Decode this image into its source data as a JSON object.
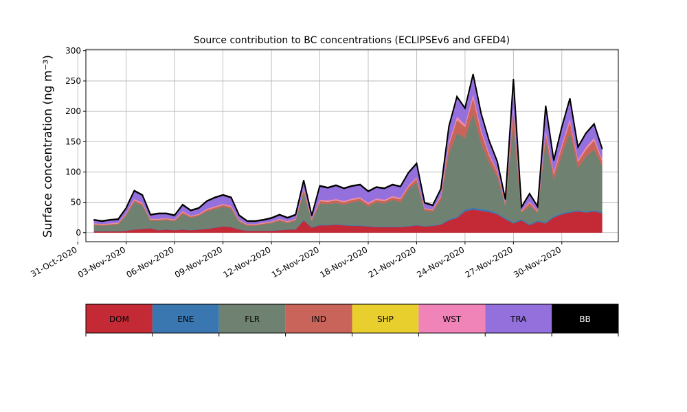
{
  "chart_data": {
    "type": "area",
    "stacked": true,
    "title": "Source contribution to BC concentrations (ECLIPSEv6 and GFED4)",
    "ylabel": "Surface concentration (ng m⁻³)",
    "xlabel": "",
    "ylim": [
      -15,
      302
    ],
    "yticks": [
      0,
      50,
      100,
      150,
      200,
      250,
      300
    ],
    "xlim": [
      "2020-10-31T12:00",
      "2020-12-03T12:00"
    ],
    "xticks": [
      "31-Oct-2020",
      "03-Nov-2020",
      "06-Nov-2020",
      "09-Nov-2020",
      "12-Nov-2020",
      "15-Nov-2020",
      "18-Nov-2020",
      "21-Nov-2020",
      "24-Nov-2020",
      "27-Nov-2020",
      "30-Nov-2020"
    ],
    "grid": true,
    "legend_position": "bottom",
    "colors": {
      "DOM": "#c42a36",
      "ENE": "#3a77b0",
      "FLR": "#6f8170",
      "IND": "#c8645a",
      "SHP": "#e8cf2e",
      "WST": "#f083b8",
      "TRA": "#9370db",
      "BB": "#000000"
    },
    "series_order": [
      "DOM",
      "ENE",
      "FLR",
      "IND",
      "SHP",
      "WST",
      "TRA",
      "BB"
    ],
    "x": [
      "2020-11-01T00:00",
      "2020-11-01T12:00",
      "2020-11-02T00:00",
      "2020-11-02T12:00",
      "2020-11-03T00:00",
      "2020-11-03T06:00",
      "2020-11-03T12:00",
      "2020-11-04T00:00",
      "2020-11-04T12:00",
      "2020-11-05T00:00",
      "2020-11-05T12:00",
      "2020-11-06T00:00",
      "2020-11-06T12:00",
      "2020-11-07T00:00",
      "2020-11-07T12:00",
      "2020-11-08T00:00",
      "2020-11-08T12:00",
      "2020-11-09T00:00",
      "2020-11-09T12:00",
      "2020-11-10T00:00",
      "2020-11-10T12:00",
      "2020-11-11T00:00",
      "2020-11-11T12:00",
      "2020-11-12T00:00",
      "2020-11-12T12:00",
      "2020-11-13T00:00",
      "2020-11-13T12:00",
      "2020-11-14T00:00",
      "2020-11-14T12:00",
      "2020-11-15T00:00",
      "2020-11-15T12:00",
      "2020-11-16T00:00",
      "2020-11-16T12:00",
      "2020-11-17T00:00",
      "2020-11-17T12:00",
      "2020-11-18T00:00",
      "2020-11-18T12:00",
      "2020-11-19T00:00",
      "2020-11-19T12:00",
      "2020-11-20T00:00",
      "2020-11-20T12:00",
      "2020-11-21T00:00",
      "2020-11-21T12:00",
      "2020-11-22T00:00",
      "2020-11-22T12:00",
      "2020-11-23T00:00",
      "2020-11-23T12:00",
      "2020-11-24T00:00",
      "2020-11-24T12:00",
      "2020-11-25T00:00",
      "2020-11-25T12:00",
      "2020-11-26T00:00",
      "2020-11-26T12:00",
      "2020-11-27T00:00",
      "2020-11-27T12:00",
      "2020-11-28T00:00",
      "2020-11-28T12:00",
      "2020-11-29T00:00",
      "2020-11-29T12:00",
      "2020-11-30T00:00",
      "2020-11-30T12:00",
      "2020-12-01T00:00",
      "2020-12-01T12:00",
      "2020-12-02T00:00",
      "2020-12-02T12:00"
    ],
    "series": [
      {
        "name": "DOM",
        "values": [
          2,
          2,
          2,
          2,
          3,
          4,
          5,
          6,
          7,
          4,
          5,
          4,
          5,
          4,
          5,
          6,
          8,
          10,
          9,
          5,
          3,
          3,
          3,
          3,
          4,
          5,
          5,
          20,
          8,
          12,
          12,
          13,
          12,
          11,
          11,
          10,
          9,
          9,
          9,
          9,
          10,
          12,
          10,
          11,
          13,
          20,
          24,
          35,
          38,
          36,
          34,
          30,
          22,
          15,
          20,
          12,
          18,
          15,
          25,
          30,
          33,
          35,
          33,
          35,
          32
        ]
      },
      {
        "name": "ENE",
        "values": [
          0.5,
          0.5,
          0.5,
          0.5,
          0.5,
          0.5,
          0.5,
          0.5,
          0.5,
          0.5,
          0.5,
          0.5,
          0.5,
          0.5,
          0.5,
          0.5,
          0.5,
          0.5,
          0.5,
          0.5,
          0.5,
          0.5,
          0.5,
          0.5,
          0.5,
          0.5,
          0.5,
          1,
          1,
          1,
          1,
          1,
          1,
          1,
          1,
          1,
          1,
          1,
          1,
          1,
          1,
          1,
          1,
          1,
          1,
          2,
          2,
          3,
          3,
          3,
          3,
          2,
          2,
          2,
          2,
          2,
          2,
          2,
          2,
          2,
          2,
          2,
          2,
          2,
          2
        ]
      },
      {
        "name": "FLR",
        "values": [
          10,
          9,
          10,
          11,
          25,
          35,
          45,
          38,
          12,
          15,
          15,
          14,
          25,
          20,
          22,
          28,
          30,
          32,
          30,
          12,
          8,
          8,
          10,
          12,
          15,
          10,
          14,
          45,
          10,
          35,
          34,
          35,
          33,
          38,
          40,
          32,
          40,
          38,
          44,
          40,
          60,
          70,
          25,
          22,
          40,
          108,
          138,
          118,
          155,
          108,
          78,
          60,
          20,
          160,
          10,
          30,
          12,
          135,
          60,
          95,
          130,
          70,
          90,
          100,
          75
        ]
      },
      {
        "name": "IND",
        "values": [
          1.5,
          1.5,
          1.5,
          1.5,
          2,
          3,
          3,
          3,
          2,
          2,
          2,
          2,
          3,
          2,
          2,
          3,
          3,
          3,
          3,
          2,
          1.5,
          1.5,
          1.5,
          1.5,
          2,
          2,
          2,
          5,
          2,
          4,
          4,
          4,
          4,
          4,
          4,
          4,
          4,
          4,
          4,
          5,
          5,
          6,
          3,
          3,
          5,
          15,
          22,
          18,
          26,
          18,
          12,
          8,
          3,
          25,
          3,
          5,
          3,
          12,
          10,
          14,
          18,
          10,
          12,
          15,
          9
        ]
      },
      {
        "name": "SHP",
        "values": [
          0.3,
          0.3,
          0.3,
          0.3,
          0.3,
          0.3,
          0.3,
          0.3,
          0.3,
          0.3,
          0.3,
          0.3,
          0.3,
          0.3,
          0.3,
          0.3,
          0.3,
          0.3,
          0.3,
          0.3,
          0.3,
          0.3,
          0.3,
          0.3,
          0.3,
          0.3,
          0.3,
          0.3,
          0.3,
          0.3,
          0.3,
          0.3,
          0.3,
          0.3,
          0.3,
          0.3,
          0.3,
          0.3,
          0.3,
          0.3,
          0.3,
          0.3,
          0.3,
          0.3,
          0.3,
          0.3,
          0.3,
          0.3,
          0.3,
          0.3,
          0.3,
          0.3,
          0.3,
          0.3,
          0.3,
          0.3,
          0.3,
          0.3,
          0.3,
          0.3,
          0.3,
          0.3,
          0.3,
          0.3,
          0.3
        ]
      },
      {
        "name": "WST",
        "values": [
          1,
          1,
          1,
          1,
          1,
          1.5,
          1.5,
          1.5,
          1,
          1,
          1,
          1,
          1.5,
          1,
          1,
          1.5,
          1.5,
          1.5,
          1.5,
          1,
          1,
          1,
          1,
          1,
          1,
          1,
          1,
          2,
          1,
          2,
          2,
          2,
          2,
          2,
          2,
          2,
          2,
          2,
          2,
          2,
          2,
          2,
          1,
          1,
          2,
          4,
          5,
          4,
          6,
          4,
          3,
          2,
          1,
          5,
          1,
          2,
          1,
          4,
          3,
          4,
          5,
          3,
          4,
          4,
          3
        ]
      },
      {
        "name": "TRA",
        "values": [
          5,
          4,
          5,
          5,
          8,
          10,
          13,
          12,
          6,
          8,
          7,
          6,
          10,
          8,
          9,
          12,
          14,
          14,
          13,
          7,
          4,
          4,
          4,
          5,
          6,
          5,
          6,
          12,
          5,
          22,
          20,
          22,
          20,
          20,
          20,
          18,
          18,
          18,
          18,
          18,
          20,
          22,
          8,
          6,
          10,
          25,
          32,
          26,
          32,
          26,
          20,
          14,
          6,
          45,
          5,
          12,
          6,
          40,
          18,
          28,
          32,
          20,
          22,
          22,
          16
        ]
      },
      {
        "name": "BB",
        "values": [
          1,
          1,
          1,
          1,
          1,
          1,
          1,
          1,
          1,
          1,
          1,
          1,
          1,
          1,
          1,
          1,
          1,
          1,
          1,
          1,
          1,
          1,
          1,
          1,
          1,
          1,
          1,
          1,
          1,
          1,
          1,
          1,
          1,
          1,
          1,
          1,
          1,
          1,
          1,
          1,
          1,
          1,
          1,
          1,
          1,
          1,
          1,
          1,
          1,
          1,
          1,
          1,
          1,
          1,
          1,
          1,
          1,
          1,
          1,
          1,
          1,
          1,
          1,
          1,
          1
        ]
      }
    ],
    "legend": [
      {
        "label": "DOM",
        "color": "#c42a36",
        "text_color": "#000000"
      },
      {
        "label": "ENE",
        "color": "#3a77b0",
        "text_color": "#000000"
      },
      {
        "label": "FLR",
        "color": "#6f8170",
        "text_color": "#000000"
      },
      {
        "label": "IND",
        "color": "#c8645a",
        "text_color": "#000000"
      },
      {
        "label": "SHP",
        "color": "#e8cf2e",
        "text_color": "#000000"
      },
      {
        "label": "WST",
        "color": "#f083b8",
        "text_color": "#000000"
      },
      {
        "label": "TRA",
        "color": "#9370db",
        "text_color": "#000000"
      },
      {
        "label": "BB",
        "color": "#000000",
        "text_color": "#ffffff"
      }
    ]
  }
}
